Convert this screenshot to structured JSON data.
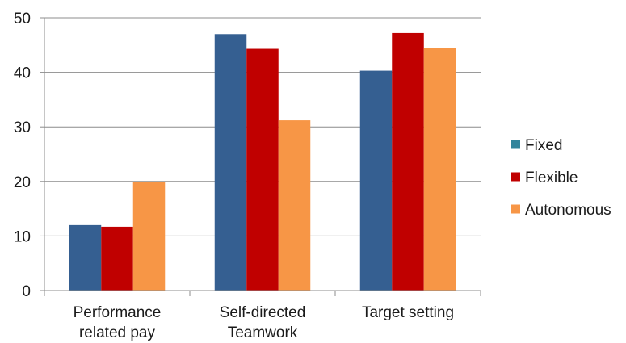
{
  "chart_data": {
    "type": "bar",
    "categories": [
      [
        "Performance",
        "related pay"
      ],
      [
        "Self-directed",
        "Teamwork"
      ],
      [
        "Target setting"
      ]
    ],
    "series": [
      {
        "name": "Fixed",
        "color": "#355f91",
        "values": [
          12,
          47,
          40.3
        ]
      },
      {
        "name": "Flexible",
        "color": "#c00000",
        "values": [
          11.7,
          44.3,
          47.2
        ]
      },
      {
        "name": "Autonomous",
        "color": "#f79646",
        "values": [
          19.9,
          31.2,
          44.5
        ]
      }
    ],
    "legend_swatch_colors": [
      "#31849b",
      "#c00000",
      "#f79646"
    ],
    "ylim": [
      0,
      50
    ],
    "yticks": [
      0,
      10,
      20,
      30,
      40,
      50
    ],
    "grid": true,
    "legend_position": "right",
    "title": "",
    "xlabel": "",
    "ylabel": ""
  }
}
